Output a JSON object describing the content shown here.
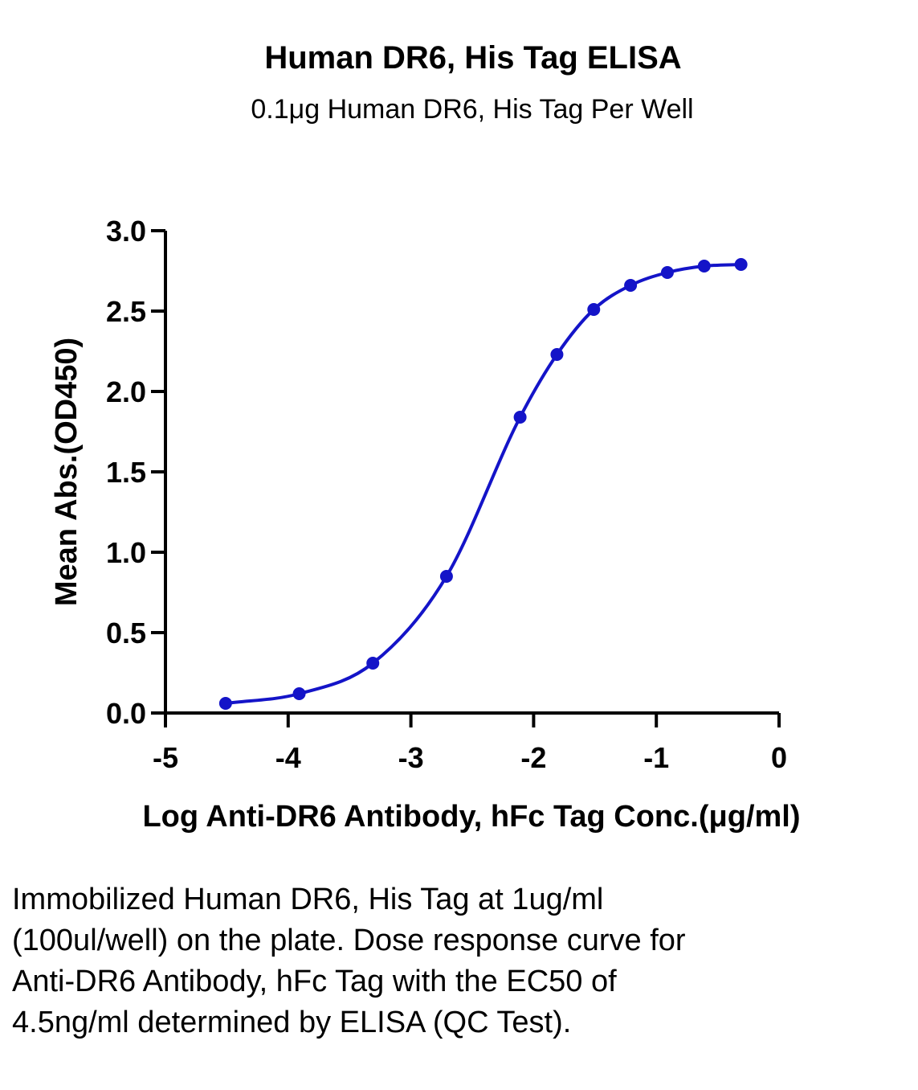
{
  "chart_data": {
    "type": "scatter",
    "title": "Human DR6, His Tag ELISA",
    "subtitle": "0.1μg Human DR6, His Tag Per Well",
    "xlabel": "Log Anti-DR6 Antibody, hFc Tag Conc.(μg/ml)",
    "ylabel": "Mean Abs.(OD450)",
    "xlim": [
      -5,
      0
    ],
    "ylim": [
      0,
      3.0
    ],
    "x_ticks": [
      "-5",
      "-4",
      "-3",
      "-2",
      "-1",
      "0"
    ],
    "y_ticks": [
      "0.0",
      "0.5",
      "1.0",
      "1.5",
      "2.0",
      "2.5",
      "3.0"
    ],
    "grid": false,
    "fit": "four-parameter logistic curve",
    "series": [
      {
        "x": [
          -4.51,
          -3.91,
          -3.31,
          -2.71,
          -2.11,
          -1.81,
          -1.51,
          -1.21,
          -0.91,
          -0.61,
          -0.31
        ],
        "y": [
          0.06,
          0.12,
          0.31,
          0.85,
          1.84,
          2.23,
          2.51,
          2.66,
          2.74,
          2.78,
          2.79
        ]
      }
    ],
    "color": "#1414c8"
  },
  "caption": "Immobilized Human DR6, His Tag at 1ug/ml (100ul/well) on the plate. Dose response curve for Anti-DR6 Antibody, hFc Tag with the EC50 of 4.5ng/ml determined by ELISA (QC Test)."
}
